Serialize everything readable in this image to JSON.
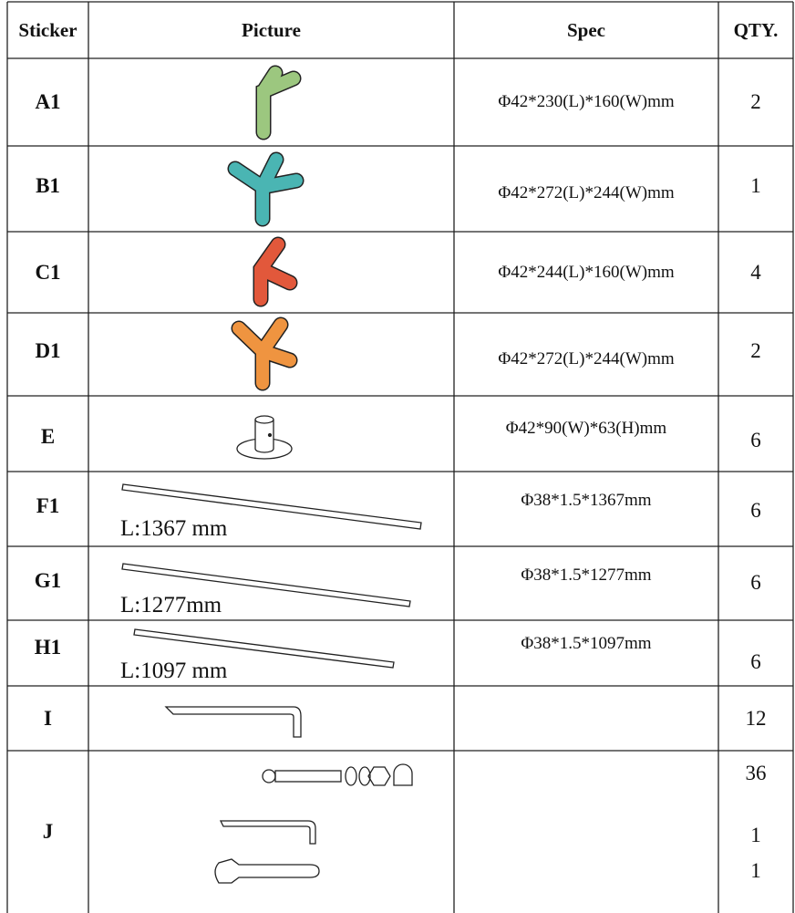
{
  "table": {
    "headers": [
      "Sticker",
      "Picture",
      "Spec",
      "QTY."
    ],
    "rows": [
      {
        "sticker": "A1",
        "spec": "Φ42*230(L)*160(W)mm",
        "qty": "2"
      },
      {
        "sticker": "B1",
        "spec": "Φ42*272(L)*244(W)mm",
        "qty": "1"
      },
      {
        "sticker": "C1",
        "spec": "Φ42*244(L)*160(W)mm",
        "qty": "4"
      },
      {
        "sticker": "D1",
        "spec": "Φ42*272(L)*244(W)mm",
        "qty": "2"
      },
      {
        "sticker": "E",
        "spec": "Φ42*90(W)*63(H)mm",
        "qty": "6"
      },
      {
        "sticker": "F1",
        "label": "L:1367 mm",
        "spec": "Φ38*1.5*1367mm",
        "qty": "6"
      },
      {
        "sticker": "G1",
        "label": "L:1277mm",
        "spec": "Φ38*1.5*1277mm",
        "qty": "6"
      },
      {
        "sticker": "H1",
        "label": "L:1097 mm",
        "spec": "Φ38*1.5*1097mm",
        "qty": "6"
      },
      {
        "sticker": "I",
        "qty": "12"
      },
      {
        "sticker": "J",
        "qty": [
          "36",
          "1",
          "1"
        ]
      }
    ]
  }
}
